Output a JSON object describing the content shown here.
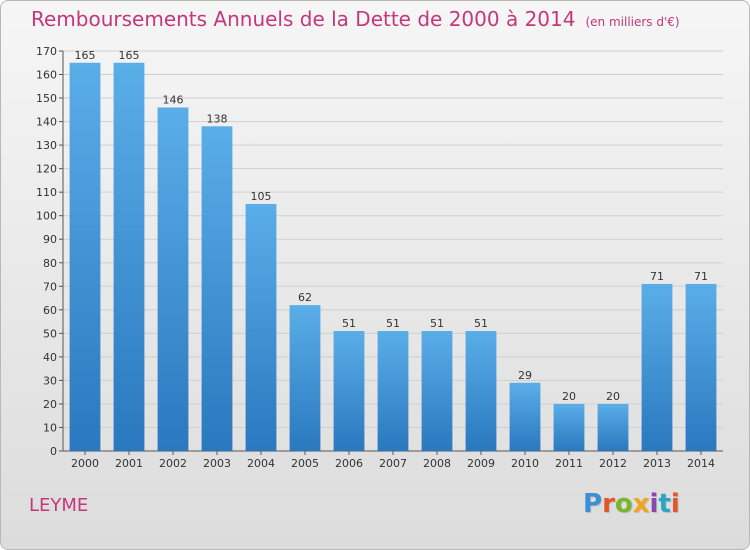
{
  "header": {
    "title": "Remboursements Annuels de la Dette de 2000 à 2014",
    "subtitle": "(en milliers d'€)"
  },
  "footer": {
    "place": "LEYME",
    "logo_text": "Proxiti",
    "logo_colors": [
      "#3a8fd6",
      "#e2562a",
      "#7bb62a",
      "#f2a320",
      "#8e44ad",
      "#2aa6c4",
      "#e2562a"
    ]
  },
  "chart_data": {
    "type": "bar",
    "title": "Remboursements Annuels de la Dette de 2000 à 2014",
    "subtitle": "(en milliers d'€)",
    "xlabel": "",
    "ylabel": "",
    "categories": [
      "2000",
      "2001",
      "2002",
      "2003",
      "2004",
      "2005",
      "2006",
      "2007",
      "2008",
      "2009",
      "2010",
      "2011",
      "2012",
      "2013",
      "2014"
    ],
    "values": [
      165,
      165,
      146,
      138,
      105,
      62,
      51,
      51,
      51,
      51,
      29,
      20,
      20,
      71,
      71
    ],
    "ylim": [
      0,
      170
    ],
    "yticks": [
      0,
      10,
      20,
      30,
      40,
      50,
      60,
      70,
      80,
      90,
      100,
      110,
      120,
      130,
      140,
      150,
      160,
      170
    ],
    "grid": true,
    "legend": "none",
    "bar_color_top": "#5aaee8",
    "bar_color_bottom": "#2a78bf"
  }
}
